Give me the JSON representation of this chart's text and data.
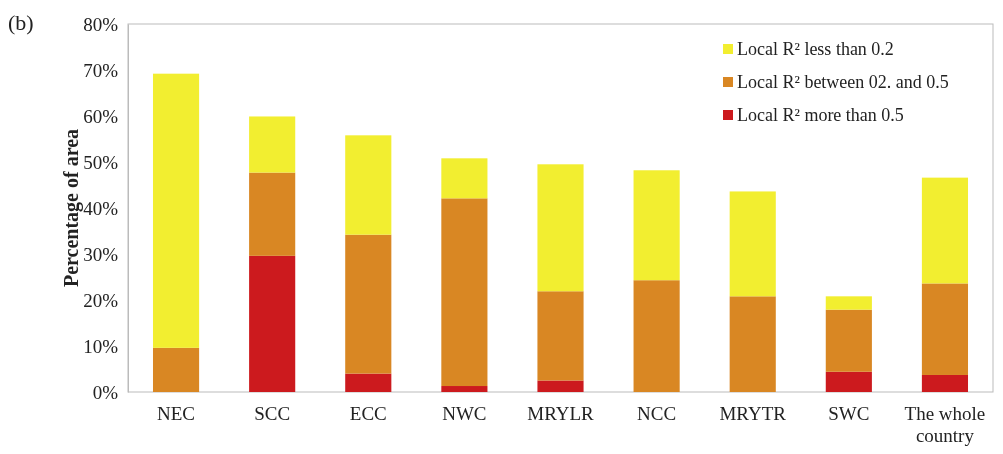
{
  "chart_data": {
    "type": "bar",
    "stacked": true,
    "ylabel": "Percentage of area",
    "annotations": [
      "(b)"
    ],
    "categories": [
      "NEC",
      "SCC",
      "ECC",
      "NWC",
      "MRYLR",
      "NCC",
      "MRYTR",
      "SWC",
      "The whole country"
    ],
    "series": [
      {
        "name": "Local R² more than 0.5",
        "color": "#cc1a1e",
        "values": [
          0,
          29.6,
          4.0,
          1.3,
          2.5,
          0,
          0,
          4.4,
          3.7
        ]
      },
      {
        "name": "Local R² between 02. and 0.5",
        "color": "#d98723",
        "values": [
          9.6,
          18.1,
          30.2,
          40.8,
          19.4,
          24.3,
          20.8,
          13.5,
          19.9
        ]
      },
      {
        "name": "Local R² less than 0.2",
        "color": "#f2ee30",
        "values": [
          59.6,
          12.2,
          21.6,
          8.7,
          27.6,
          23.9,
          22.8,
          2.9,
          23.0
        ]
      }
    ],
    "ylim": [
      0,
      80
    ],
    "yticks": [
      {
        "value": 0,
        "label": "0%"
      },
      {
        "value": 10,
        "label": "10%"
      },
      {
        "value": 20,
        "label": "20%"
      },
      {
        "value": 30,
        "label": "30%"
      },
      {
        "value": 40,
        "label": "40%"
      },
      {
        "value": 50,
        "label": "50%"
      },
      {
        "value": 60,
        "label": "60%"
      },
      {
        "value": 70,
        "label": "70%"
      },
      {
        "value": 80,
        "label": "80%"
      }
    ],
    "legend": "top right",
    "grid": false
  }
}
